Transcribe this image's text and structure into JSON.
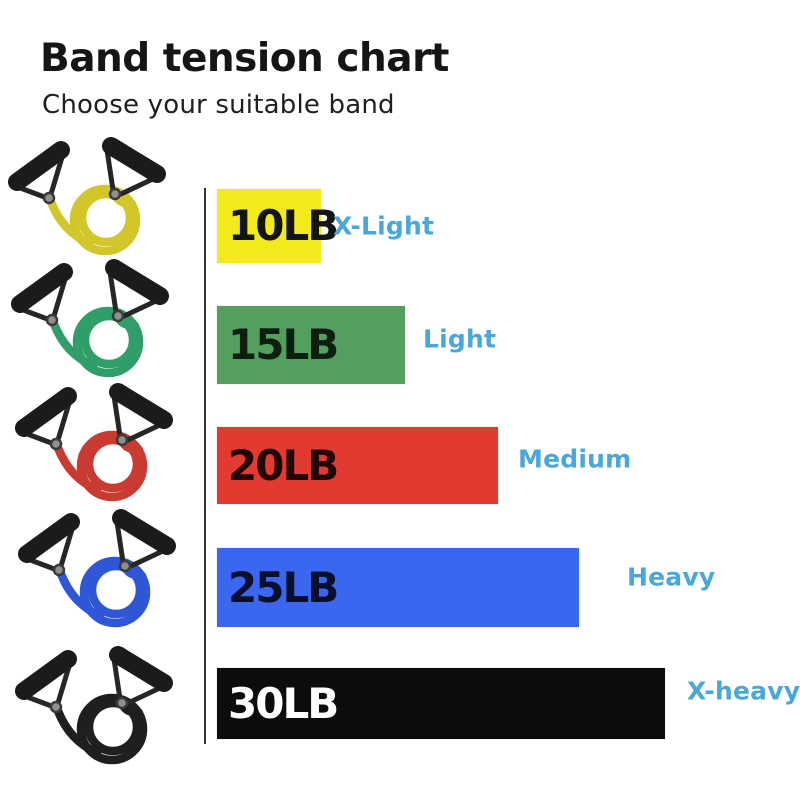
{
  "header": {
    "title": "Band tension chart",
    "subtitle": "Choose your suitable band"
  },
  "chart_data": {
    "type": "bar",
    "orientation": "horizontal",
    "title": "Band tension chart",
    "subtitle": "Choose your suitable band",
    "unit": "LB",
    "categories": [
      "X-Light",
      "Light",
      "Medium",
      "Heavy",
      "X-heavy"
    ],
    "values": [
      10,
      15,
      20,
      25,
      30
    ],
    "bars": [
      {
        "weight": "10LB",
        "tension_lb": 10,
        "level": "X-Light",
        "bar_color": "#f2ea1b",
        "weight_text_color": "#141414",
        "band_tube_color": "#d2c62b"
      },
      {
        "weight": "15LB",
        "tension_lb": 15,
        "level": "Light",
        "bar_color": "#549f5e",
        "weight_text_color": "#0d1f10",
        "band_tube_color": "#2f9e68"
      },
      {
        "weight": "20LB",
        "tension_lb": 20,
        "level": "Medium",
        "bar_color": "#e23a31",
        "weight_text_color": "#230707",
        "band_tube_color": "#c93a30"
      },
      {
        "weight": "25LB",
        "tension_lb": 25,
        "level": "Heavy",
        "bar_color": "#3b66f0",
        "weight_text_color": "#0a102c",
        "band_tube_color": "#2e56d6"
      },
      {
        "weight": "30LB",
        "tension_lb": 30,
        "level": "X-heavy",
        "bar_color": "#0c0c0c",
        "weight_text_color": "#ffffff",
        "band_tube_color": "#1f1f1f"
      }
    ],
    "level_text_color": "#49a7d9",
    "axis_line_color": "#333333",
    "grid": false,
    "legend_position": "none"
  },
  "products": {
    "item": "resistance band with foam handles",
    "colors": [
      "yellow",
      "green",
      "red",
      "blue",
      "black"
    ]
  }
}
